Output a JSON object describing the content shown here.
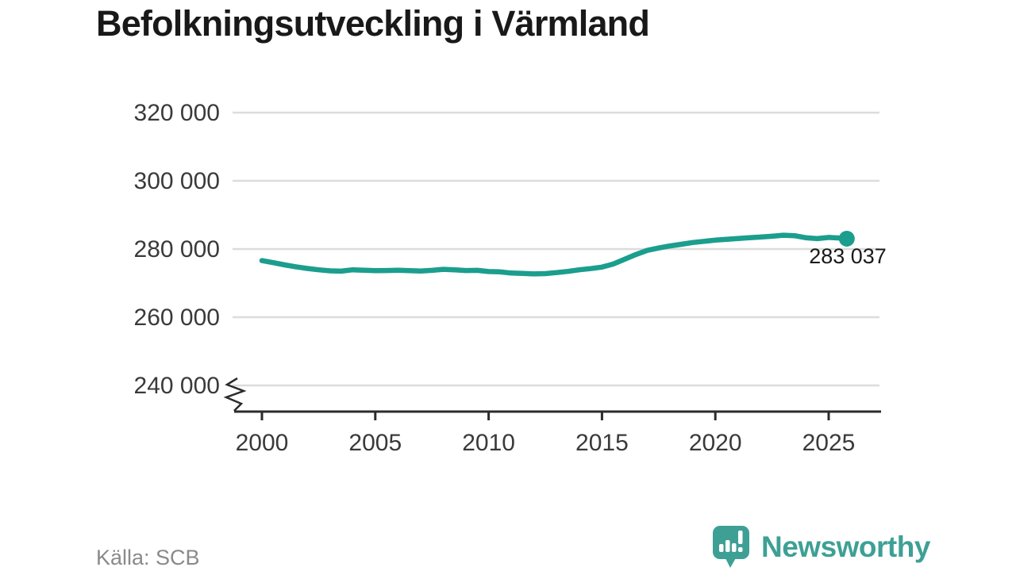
{
  "title": "Befolkningsutveckling i Värmland",
  "source": "Källa: SCB",
  "branding": {
    "name": "Newsworthy",
    "logo_icon": "newsworthy-speech-bubble-bar-chart-icon"
  },
  "colors": {
    "line": "#1b9e8d",
    "grid": "#dcdcdc",
    "axis": "#2b2b2b",
    "title": "#191919",
    "tick_label": "#3a3a3a",
    "source": "#8a8a8a",
    "brand": "#3ea095",
    "background": "#ffffff"
  },
  "chart_data": {
    "type": "line",
    "title": "Befolkningsutveckling i Värmland",
    "xlabel": "",
    "ylabel": "",
    "grid": "horizontal-only",
    "legend": "none",
    "y_axis": {
      "min": 240000,
      "max": 320000,
      "tick_step": 20000,
      "broken_axis": true,
      "ticks": [
        {
          "value": 240000,
          "label": "240 000"
        },
        {
          "value": 260000,
          "label": "260 000"
        },
        {
          "value": 280000,
          "label": "280 000"
        },
        {
          "value": 300000,
          "label": "300 000"
        },
        {
          "value": 320000,
          "label": "320 000"
        }
      ]
    },
    "x_axis": {
      "range": [
        1998.7,
        2027.2
      ],
      "ticks": [
        {
          "value": 2000,
          "label": "2000"
        },
        {
          "value": 2005,
          "label": "2005"
        },
        {
          "value": 2010,
          "label": "2010"
        },
        {
          "value": 2015,
          "label": "2015"
        },
        {
          "value": 2020,
          "label": "2020"
        },
        {
          "value": 2025,
          "label": "2025"
        }
      ]
    },
    "series": [
      {
        "name": "Värmland",
        "x": [
          2000,
          2000.5,
          2001,
          2001.5,
          2002,
          2002.5,
          2003,
          2003.5,
          2004,
          2004.5,
          2005,
          2005.5,
          2006,
          2006.5,
          2007,
          2007.5,
          2008,
          2008.5,
          2009,
          2009.5,
          2010,
          2010.5,
          2011,
          2011.5,
          2012,
          2012.5,
          2013,
          2013.5,
          2014,
          2014.5,
          2015,
          2015.5,
          2016,
          2016.5,
          2017,
          2017.5,
          2018,
          2018.5,
          2019,
          2019.5,
          2020,
          2020.5,
          2021,
          2021.5,
          2022,
          2022.5,
          2023,
          2023.5,
          2024,
          2024.5,
          2025,
          2025.4,
          2025.8
        ],
        "values": [
          276600,
          276000,
          275350,
          274800,
          274300,
          273900,
          273600,
          273500,
          273900,
          273800,
          273650,
          273700,
          273800,
          273650,
          273550,
          273750,
          274050,
          273900,
          273700,
          273750,
          273400,
          273300,
          272950,
          272850,
          272700,
          272800,
          273100,
          273450,
          273900,
          274250,
          274700,
          275600,
          277000,
          278400,
          279600,
          280300,
          280900,
          281400,
          281900,
          282250,
          282600,
          282850,
          283100,
          283300,
          283500,
          283750,
          284050,
          283900,
          283300,
          283050,
          283400,
          283250,
          283037
        ]
      }
    ],
    "end_label": "283 037",
    "latest_value": 283037
  }
}
